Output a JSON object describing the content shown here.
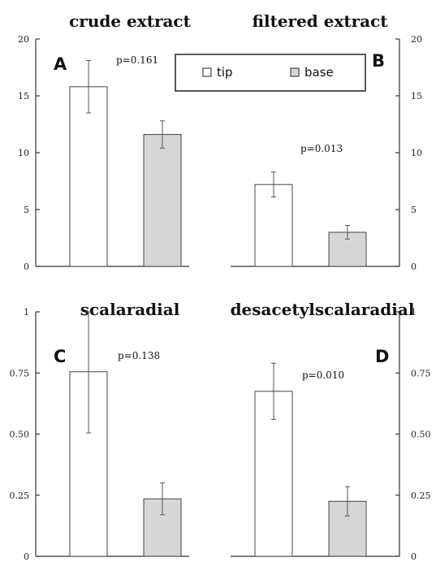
{
  "legend": {
    "entries": [
      {
        "label": "tip",
        "color": "#ffffff"
      },
      {
        "label": "base",
        "color": "#d6d6d6"
      }
    ]
  },
  "chart_data": [
    {
      "type": "bar",
      "title": "crude extract",
      "panel": "A",
      "annotation": "p=0.161",
      "categories": [
        "tip",
        "base"
      ],
      "values": [
        15.8,
        11.6
      ],
      "errors": [
        2.3,
        1.2
      ],
      "ylim": [
        0,
        20
      ],
      "yticks": [
        "0",
        "5",
        "10",
        "15",
        "20"
      ],
      "axis_side": "left"
    },
    {
      "type": "bar",
      "title": "filtered extract",
      "panel": "B",
      "annotation": "p=0.013",
      "categories": [
        "tip",
        "base"
      ],
      "values": [
        7.2,
        3.0
      ],
      "errors": [
        1.1,
        0.6
      ],
      "ylim": [
        0,
        20
      ],
      "yticks": [
        "0",
        "5",
        "10",
        "15",
        "20"
      ],
      "axis_side": "right"
    },
    {
      "type": "bar",
      "title": "scalaradial",
      "panel": "C",
      "annotation": "p=0.138",
      "categories": [
        "tip",
        "base"
      ],
      "values": [
        0.755,
        0.235
      ],
      "errors": [
        0.25,
        0.065
      ],
      "ylim": [
        0,
        1
      ],
      "yticks": [
        "0",
        "0.25",
        "0.50",
        "0.75",
        "1"
      ],
      "axis_side": "left"
    },
    {
      "type": "bar",
      "title": "desacetylscalaradial",
      "panel": "D",
      "annotation": "p=0.010",
      "categories": [
        "tip",
        "base"
      ],
      "values": [
        0.675,
        0.225
      ],
      "errors": [
        0.115,
        0.06
      ],
      "ylim": [
        0,
        1
      ],
      "yticks": [
        "0",
        "0.25",
        "0.50",
        "0.75",
        "1"
      ],
      "axis_side": "right"
    }
  ]
}
